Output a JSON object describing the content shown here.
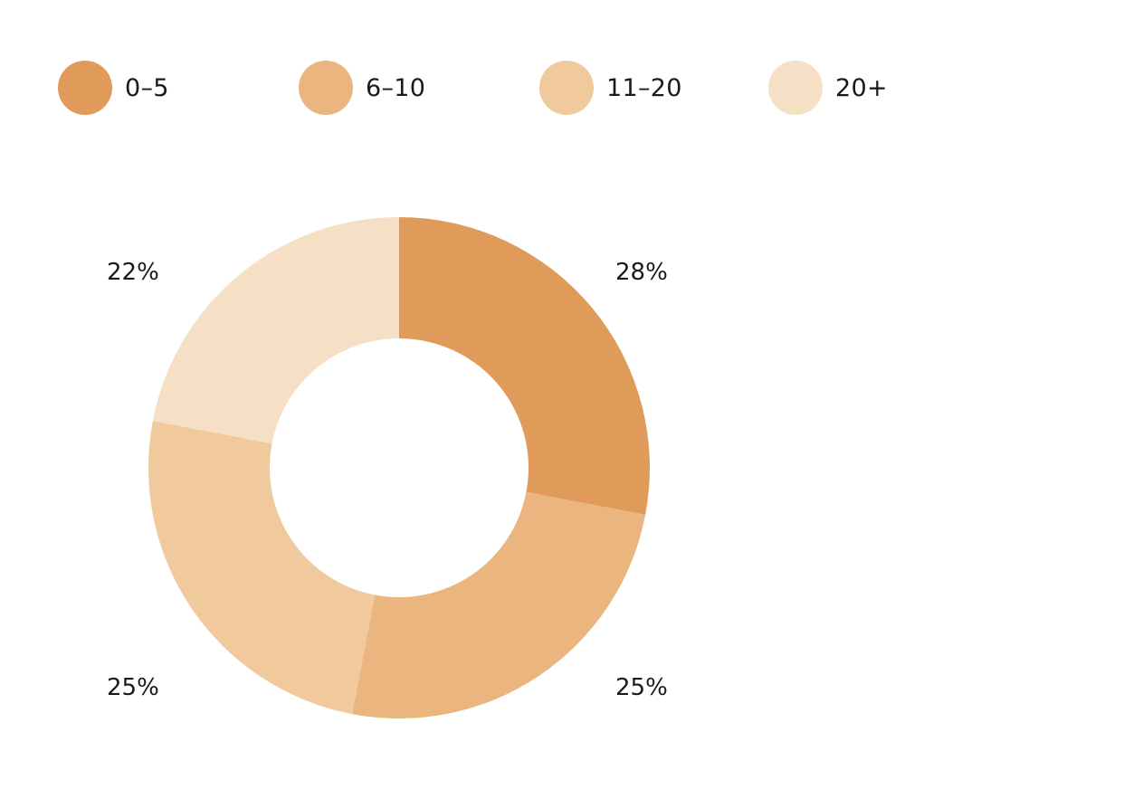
{
  "chart_data": {
    "type": "pie",
    "variant": "donut",
    "categories": [
      "0-5",
      "6-10",
      "11-20",
      "20+"
    ],
    "values": [
      28,
      25,
      25,
      22
    ],
    "value_labels": [
      "28%",
      "25%",
      "25%",
      "22%"
    ],
    "colors": [
      "#E09B5A",
      "#EAB57E",
      "#F0CA9C",
      "#F6E0C5"
    ],
    "legend_position": "top-left"
  },
  "legend": {
    "items": [
      {
        "label": "0–5",
        "color": "#E09B5A"
      },
      {
        "label": "6–10",
        "color": "#EAB57E"
      },
      {
        "label": "11–20",
        "color": "#F0CA9C"
      },
      {
        "label": "20+",
        "color": "#F6E0C5"
      }
    ]
  }
}
